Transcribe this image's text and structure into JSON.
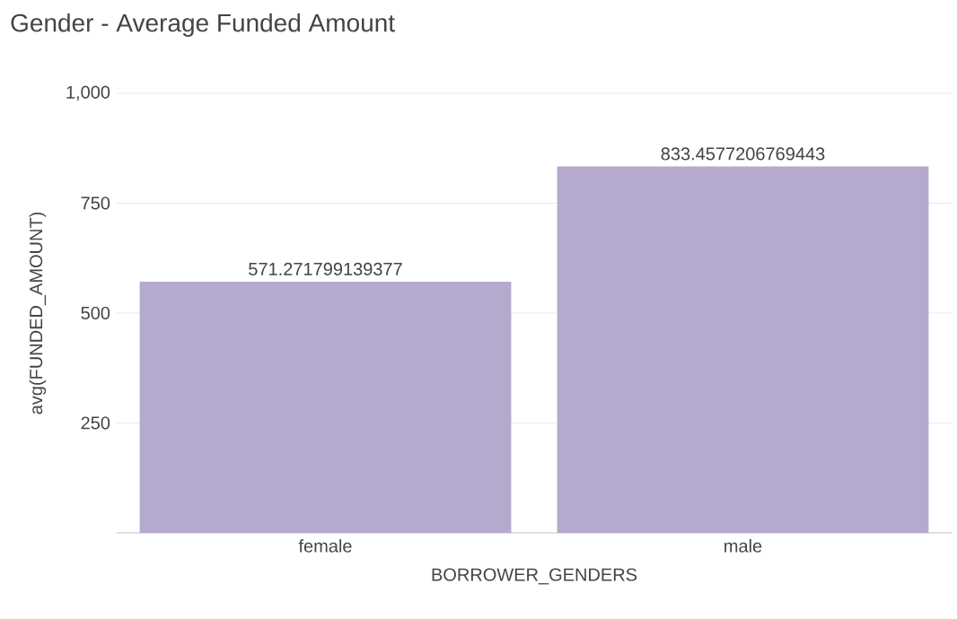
{
  "chart_data": {
    "type": "bar",
    "title": "Gender - Average Funded Amount",
    "xlabel": "BORROWER_GENDERS",
    "ylabel": "avg(FUNDED_AMOUNT)",
    "categories": [
      "female",
      "male"
    ],
    "values": [
      571.271799139377,
      833.4577206769443
    ],
    "color": "#b5aacd",
    "ylim": [
      0,
      1000
    ],
    "yticks": [
      {
        "value": 0,
        "label": null
      },
      250,
      500,
      750,
      {
        "value": 1000,
        "label": "1,000"
      }
    ],
    "grid": "y",
    "data_labels": true
  }
}
